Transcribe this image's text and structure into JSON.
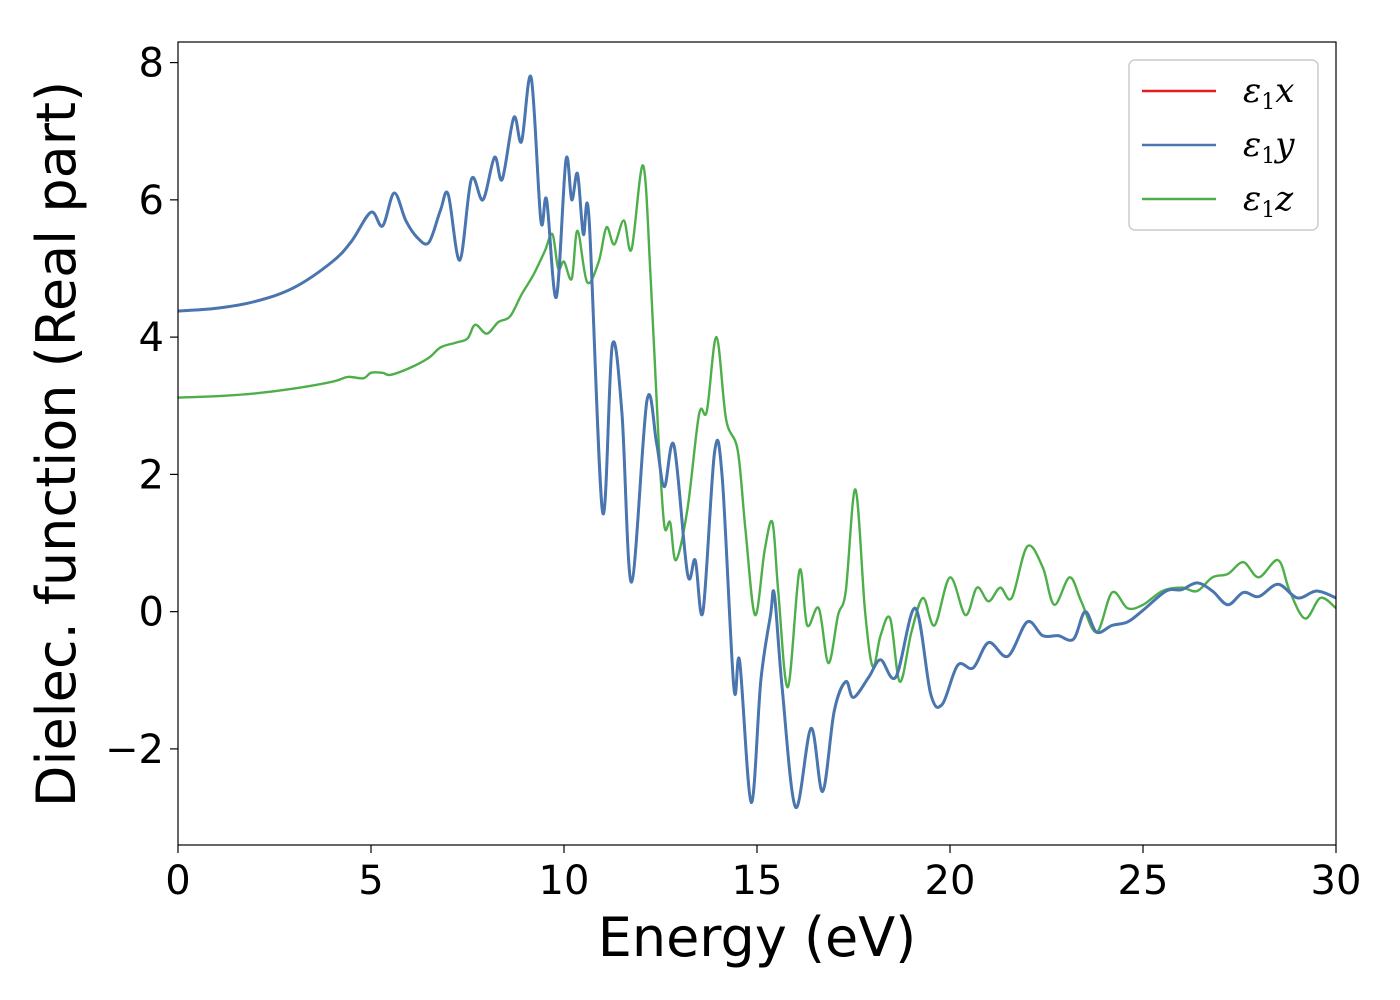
{
  "chart_data": {
    "type": "line",
    "xlabel": "Energy (eV)",
    "ylabel": "Dielec. function (Real part)",
    "xlim": [
      0,
      30
    ],
    "ylim": [
      -3.4,
      8.3
    ],
    "x_ticks": [
      0,
      5,
      10,
      15,
      20,
      25,
      30
    ],
    "x_tick_labels": [
      "0",
      "5",
      "10",
      "15",
      "20",
      "25",
      "30"
    ],
    "y_ticks": [
      -2,
      0,
      2,
      4,
      6,
      8
    ],
    "y_tick_labels": [
      "−2",
      "0",
      "2",
      "4",
      "6",
      "8"
    ],
    "grid": false,
    "legend_position": "top-right",
    "series": [
      {
        "name": "ε",
        "subscript": "1",
        "suffix": "x",
        "color": "#e41a1c",
        "points": [
          [
            0,
            4.38
          ],
          [
            1,
            4.42
          ],
          [
            2,
            4.52
          ],
          [
            3,
            4.72
          ],
          [
            4,
            5.1
          ],
          [
            4.5,
            5.4
          ],
          [
            5,
            5.82
          ],
          [
            5.3,
            5.62
          ],
          [
            5.6,
            6.1
          ],
          [
            5.9,
            5.7
          ],
          [
            6.2,
            5.45
          ],
          [
            6.5,
            5.38
          ],
          [
            6.8,
            5.85
          ],
          [
            7.0,
            6.08
          ],
          [
            7.3,
            5.12
          ],
          [
            7.6,
            6.3
          ],
          [
            7.9,
            6.0
          ],
          [
            8.2,
            6.62
          ],
          [
            8.4,
            6.3
          ],
          [
            8.7,
            7.2
          ],
          [
            8.9,
            6.85
          ],
          [
            9.15,
            7.78
          ],
          [
            9.4,
            5.7
          ],
          [
            9.55,
            6.0
          ],
          [
            9.8,
            4.58
          ],
          [
            10.05,
            6.58
          ],
          [
            10.2,
            6.0
          ],
          [
            10.35,
            6.38
          ],
          [
            10.5,
            5.5
          ],
          [
            10.65,
            5.72
          ],
          [
            11.0,
            1.45
          ],
          [
            11.25,
            3.88
          ],
          [
            11.5,
            2.9
          ],
          [
            11.75,
            0.43
          ],
          [
            12.15,
            3.08
          ],
          [
            12.4,
            2.45
          ],
          [
            12.6,
            1.82
          ],
          [
            12.85,
            2.42
          ],
          [
            13.2,
            0.55
          ],
          [
            13.4,
            0.75
          ],
          [
            13.6,
            0.0
          ],
          [
            13.9,
            2.32
          ],
          [
            14.1,
            1.95
          ],
          [
            14.4,
            -1.1
          ],
          [
            14.55,
            -0.72
          ],
          [
            14.85,
            -2.78
          ],
          [
            15.1,
            -1.0
          ],
          [
            15.35,
            -0.05
          ],
          [
            15.45,
            0.25
          ],
          [
            15.65,
            -1.1
          ],
          [
            16.0,
            -2.85
          ],
          [
            16.4,
            -1.7
          ],
          [
            16.7,
            -2.62
          ],
          [
            17.0,
            -1.45
          ],
          [
            17.3,
            -1.02
          ],
          [
            17.5,
            -1.25
          ],
          [
            17.9,
            -0.95
          ],
          [
            18.2,
            -0.7
          ],
          [
            18.6,
            -0.95
          ],
          [
            19.1,
            0.05
          ],
          [
            19.5,
            -1.2
          ],
          [
            19.8,
            -1.35
          ],
          [
            20.2,
            -0.78
          ],
          [
            20.6,
            -0.82
          ],
          [
            21.0,
            -0.45
          ],
          [
            21.5,
            -0.65
          ],
          [
            22.0,
            -0.15
          ],
          [
            22.4,
            -0.35
          ],
          [
            22.8,
            -0.35
          ],
          [
            23.2,
            -0.4
          ],
          [
            23.5,
            0.0
          ],
          [
            23.8,
            -0.3
          ],
          [
            24.2,
            -0.2
          ],
          [
            24.6,
            -0.15
          ],
          [
            25.0,
            0.02
          ],
          [
            25.6,
            0.3
          ],
          [
            26.0,
            0.32
          ],
          [
            26.4,
            0.42
          ],
          [
            26.8,
            0.3
          ],
          [
            27.2,
            0.1
          ],
          [
            27.6,
            0.28
          ],
          [
            28.0,
            0.22
          ],
          [
            28.5,
            0.4
          ],
          [
            29.0,
            0.2
          ],
          [
            29.5,
            0.3
          ],
          [
            30.0,
            0.2
          ]
        ]
      },
      {
        "name": "ε",
        "subscript": "1",
        "suffix": "y",
        "color": "#4a76b0",
        "points": [
          [
            0,
            4.38
          ],
          [
            1,
            4.42
          ],
          [
            2,
            4.52
          ],
          [
            3,
            4.72
          ],
          [
            4,
            5.1
          ],
          [
            4.5,
            5.4
          ],
          [
            5,
            5.82
          ],
          [
            5.3,
            5.62
          ],
          [
            5.6,
            6.1
          ],
          [
            5.9,
            5.7
          ],
          [
            6.2,
            5.45
          ],
          [
            6.5,
            5.38
          ],
          [
            6.8,
            5.85
          ],
          [
            7.0,
            6.08
          ],
          [
            7.3,
            5.12
          ],
          [
            7.6,
            6.3
          ],
          [
            7.9,
            6.0
          ],
          [
            8.2,
            6.62
          ],
          [
            8.4,
            6.3
          ],
          [
            8.7,
            7.2
          ],
          [
            8.9,
            6.85
          ],
          [
            9.15,
            7.78
          ],
          [
            9.4,
            5.7
          ],
          [
            9.55,
            6.0
          ],
          [
            9.8,
            4.58
          ],
          [
            10.05,
            6.58
          ],
          [
            10.2,
            6.0
          ],
          [
            10.35,
            6.38
          ],
          [
            10.5,
            5.5
          ],
          [
            10.65,
            5.72
          ],
          [
            11.0,
            1.45
          ],
          [
            11.25,
            3.88
          ],
          [
            11.5,
            2.9
          ],
          [
            11.75,
            0.43
          ],
          [
            12.15,
            3.08
          ],
          [
            12.4,
            2.45
          ],
          [
            12.6,
            1.82
          ],
          [
            12.85,
            2.42
          ],
          [
            13.2,
            0.55
          ],
          [
            13.4,
            0.75
          ],
          [
            13.6,
            0.0
          ],
          [
            13.9,
            2.32
          ],
          [
            14.1,
            1.95
          ],
          [
            14.4,
            -1.1
          ],
          [
            14.55,
            -0.72
          ],
          [
            14.85,
            -2.78
          ],
          [
            15.1,
            -1.0
          ],
          [
            15.35,
            -0.05
          ],
          [
            15.45,
            0.25
          ],
          [
            15.65,
            -1.1
          ],
          [
            16.0,
            -2.85
          ],
          [
            16.4,
            -1.7
          ],
          [
            16.7,
            -2.62
          ],
          [
            17.0,
            -1.45
          ],
          [
            17.3,
            -1.02
          ],
          [
            17.5,
            -1.25
          ],
          [
            17.9,
            -0.95
          ],
          [
            18.2,
            -0.7
          ],
          [
            18.6,
            -0.95
          ],
          [
            19.1,
            0.05
          ],
          [
            19.5,
            -1.2
          ],
          [
            19.8,
            -1.35
          ],
          [
            20.2,
            -0.78
          ],
          [
            20.6,
            -0.82
          ],
          [
            21.0,
            -0.45
          ],
          [
            21.5,
            -0.65
          ],
          [
            22.0,
            -0.15
          ],
          [
            22.4,
            -0.35
          ],
          [
            22.8,
            -0.35
          ],
          [
            23.2,
            -0.4
          ],
          [
            23.5,
            0.0
          ],
          [
            23.8,
            -0.3
          ],
          [
            24.2,
            -0.2
          ],
          [
            24.6,
            -0.15
          ],
          [
            25.0,
            0.02
          ],
          [
            25.6,
            0.3
          ],
          [
            26.0,
            0.32
          ],
          [
            26.4,
            0.42
          ],
          [
            26.8,
            0.3
          ],
          [
            27.2,
            0.1
          ],
          [
            27.6,
            0.28
          ],
          [
            28.0,
            0.22
          ],
          [
            28.5,
            0.4
          ],
          [
            29.0,
            0.2
          ],
          [
            29.5,
            0.3
          ],
          [
            30.0,
            0.2
          ]
        ]
      },
      {
        "name": "ε",
        "subscript": "1",
        "suffix": "z",
        "color": "#4daf4a",
        "points": [
          [
            0,
            3.12
          ],
          [
            1,
            3.14
          ],
          [
            2,
            3.18
          ],
          [
            3,
            3.25
          ],
          [
            4,
            3.35
          ],
          [
            4.4,
            3.42
          ],
          [
            4.8,
            3.4
          ],
          [
            5.0,
            3.48
          ],
          [
            5.3,
            3.48
          ],
          [
            5.5,
            3.45
          ],
          [
            6.0,
            3.55
          ],
          [
            6.5,
            3.7
          ],
          [
            6.8,
            3.85
          ],
          [
            7.2,
            3.92
          ],
          [
            7.5,
            3.98
          ],
          [
            7.7,
            4.18
          ],
          [
            8.0,
            4.05
          ],
          [
            8.3,
            4.22
          ],
          [
            8.6,
            4.3
          ],
          [
            8.9,
            4.62
          ],
          [
            9.2,
            4.9
          ],
          [
            9.5,
            5.25
          ],
          [
            9.7,
            5.5
          ],
          [
            9.85,
            5.0
          ],
          [
            10.0,
            5.1
          ],
          [
            10.2,
            4.85
          ],
          [
            10.35,
            5.55
          ],
          [
            10.6,
            4.8
          ],
          [
            10.9,
            5.1
          ],
          [
            11.1,
            5.6
          ],
          [
            11.3,
            5.35
          ],
          [
            11.55,
            5.7
          ],
          [
            11.75,
            5.28
          ],
          [
            12.05,
            6.5
          ],
          [
            12.25,
            4.8
          ],
          [
            12.45,
            2.5
          ],
          [
            12.6,
            1.25
          ],
          [
            12.75,
            1.3
          ],
          [
            12.9,
            0.75
          ],
          [
            13.2,
            1.5
          ],
          [
            13.5,
            2.88
          ],
          [
            13.7,
            2.92
          ],
          [
            13.95,
            4.0
          ],
          [
            14.2,
            2.8
          ],
          [
            14.5,
            2.35
          ],
          [
            14.7,
            1.2
          ],
          [
            14.95,
            -0.05
          ],
          [
            15.2,
            0.9
          ],
          [
            15.4,
            1.3
          ],
          [
            15.55,
            0.3
          ],
          [
            15.8,
            -1.1
          ],
          [
            16.1,
            0.6
          ],
          [
            16.3,
            -0.2
          ],
          [
            16.6,
            0.05
          ],
          [
            16.85,
            -0.75
          ],
          [
            17.1,
            -0.05
          ],
          [
            17.3,
            0.3
          ],
          [
            17.55,
            1.78
          ],
          [
            17.8,
            0.0
          ],
          [
            18.0,
            -0.8
          ],
          [
            18.2,
            -0.35
          ],
          [
            18.45,
            -0.1
          ],
          [
            18.7,
            -1.02
          ],
          [
            19.0,
            -0.3
          ],
          [
            19.3,
            0.2
          ],
          [
            19.6,
            -0.2
          ],
          [
            20.0,
            0.5
          ],
          [
            20.4,
            -0.05
          ],
          [
            20.7,
            0.35
          ],
          [
            21.0,
            0.15
          ],
          [
            21.3,
            0.35
          ],
          [
            21.6,
            0.2
          ],
          [
            22.0,
            0.95
          ],
          [
            22.4,
            0.65
          ],
          [
            22.7,
            0.1
          ],
          [
            23.1,
            0.5
          ],
          [
            23.4,
            0.15
          ],
          [
            23.8,
            -0.3
          ],
          [
            24.2,
            0.28
          ],
          [
            24.6,
            0.05
          ],
          [
            25.0,
            0.1
          ],
          [
            25.5,
            0.3
          ],
          [
            26.0,
            0.35
          ],
          [
            26.4,
            0.3
          ],
          [
            26.8,
            0.5
          ],
          [
            27.2,
            0.55
          ],
          [
            27.6,
            0.72
          ],
          [
            28.0,
            0.5
          ],
          [
            28.5,
            0.75
          ],
          [
            28.8,
            0.3
          ],
          [
            29.2,
            -0.1
          ],
          [
            29.6,
            0.2
          ],
          [
            30.0,
            0.05
          ]
        ]
      }
    ]
  }
}
